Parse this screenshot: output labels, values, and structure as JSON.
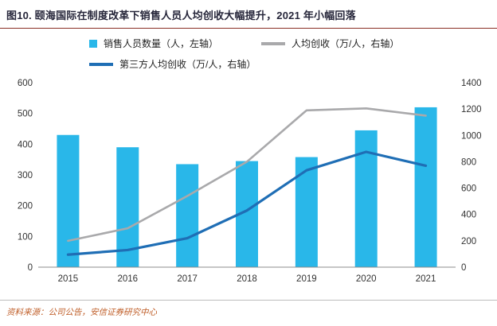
{
  "header": {
    "title": "图10. 颐海国际在制度改革下销售人员人均创收大幅提升，2021 年小幅回落"
  },
  "footer": {
    "source": "资料来源：公司公告，安信证券研究中心"
  },
  "colors": {
    "bar": "#29b7e9",
    "line_gray": "#a9a9ab",
    "line_blue": "#1f6eb5",
    "title_text": "#26263a",
    "title_rule": "#8a2e24",
    "source_text": "#c05f2a",
    "axis_text": "#333333",
    "axis_line": "#8c8c8c"
  },
  "chart_data": {
    "type": "bar+line",
    "categories": [
      "2015",
      "2016",
      "2017",
      "2018",
      "2019",
      "2020",
      "2021"
    ],
    "series": [
      {
        "name": "销售人员数量",
        "legend": "销售人员数量（人，左轴）",
        "type": "bar",
        "axis": "left",
        "color": "#29b7e9",
        "values": [
          430,
          390,
          335,
          345,
          358,
          445,
          520
        ]
      },
      {
        "name": "人均创收",
        "legend": "人均创收（万/人，右轴）",
        "type": "line",
        "axis": "right",
        "color": "#a9a9ab",
        "values": [
          200,
          295,
          540,
          800,
          1190,
          1205,
          1150
        ]
      },
      {
        "name": "第三方人均创收",
        "legend": "第三方人均创收（万/人，右轴）",
        "type": "line",
        "axis": "right",
        "color": "#1f6eb5",
        "values": [
          95,
          130,
          220,
          430,
          735,
          875,
          770
        ]
      }
    ],
    "left_axis": {
      "min": 0,
      "max": 600,
      "step": 100
    },
    "right_axis": {
      "min": 0,
      "max": 1400,
      "step": 200
    },
    "grid": false,
    "legend_position": "top-left",
    "title": "图10. 颐海国际在制度改革下销售人员人均创收大幅提升，2021 年小幅回落",
    "xlabel": "",
    "ylabel_left": "人（左轴）",
    "ylabel_right": "万/人（右轴）"
  }
}
